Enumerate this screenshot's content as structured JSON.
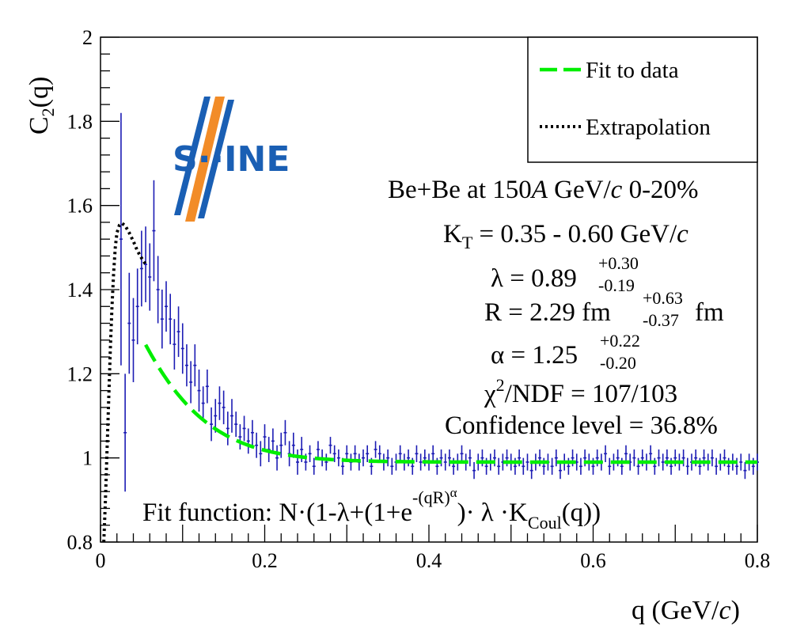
{
  "chart_data": {
    "type": "scatter",
    "title": "",
    "xlabel": "q (GeV/c)",
    "xlabel_parts": [
      "q (GeV/",
      "c",
      ")"
    ],
    "ylabel": "C2(q)",
    "ylabel_parts": [
      "C",
      "2",
      "(q)"
    ],
    "xlim": [
      0,
      0.8
    ],
    "ylim": [
      0.8,
      2.0
    ],
    "xticks": [
      {
        "v": 0,
        "label": "0"
      },
      {
        "v": 0.2,
        "label": "0.2"
      },
      {
        "v": 0.4,
        "label": "0.4"
      },
      {
        "v": 0.6,
        "label": "0.6"
      },
      {
        "v": 0.8,
        "label": "0.8"
      }
    ],
    "yticks": [
      {
        "v": 0.8,
        "label": "0.8"
      },
      {
        "v": 1.0,
        "label": "1"
      },
      {
        "v": 1.2,
        "label": "1.2"
      },
      {
        "v": 1.4,
        "label": "1.4"
      },
      {
        "v": 1.6,
        "label": "1.6"
      },
      {
        "v": 1.8,
        "label": "1.8"
      },
      {
        "v": 2.0,
        "label": "2"
      }
    ],
    "data_series": {
      "name": "Data",
      "color": "#1c1cb4",
      "points": [
        [
          0.025,
          1.52,
          0.3
        ],
        [
          0.03,
          1.06,
          0.14
        ],
        [
          0.035,
          1.32,
          0.12
        ],
        [
          0.04,
          1.28,
          0.1
        ],
        [
          0.045,
          1.36,
          0.09
        ],
        [
          0.05,
          1.45,
          0.09
        ],
        [
          0.055,
          1.46,
          0.09
        ],
        [
          0.06,
          1.43,
          0.08
        ],
        [
          0.065,
          1.54,
          0.12
        ],
        [
          0.07,
          1.4,
          0.08
        ],
        [
          0.075,
          1.33,
          0.07
        ],
        [
          0.08,
          1.36,
          0.06
        ],
        [
          0.085,
          1.33,
          0.06
        ],
        [
          0.09,
          1.27,
          0.06
        ],
        [
          0.095,
          1.3,
          0.06
        ],
        [
          0.1,
          1.26,
          0.06
        ],
        [
          0.105,
          1.22,
          0.05
        ],
        [
          0.11,
          1.18,
          0.05
        ],
        [
          0.115,
          1.22,
          0.05
        ],
        [
          0.12,
          1.16,
          0.05
        ],
        [
          0.125,
          1.13,
          0.04
        ],
        [
          0.13,
          1.17,
          0.04
        ],
        [
          0.135,
          1.08,
          0.04
        ],
        [
          0.14,
          1.1,
          0.04
        ],
        [
          0.145,
          1.13,
          0.04
        ],
        [
          0.15,
          1.12,
          0.04
        ],
        [
          0.155,
          1.07,
          0.04
        ],
        [
          0.16,
          1.1,
          0.04
        ],
        [
          0.165,
          1.08,
          0.03
        ],
        [
          0.17,
          1.05,
          0.03
        ],
        [
          0.175,
          1.07,
          0.03
        ],
        [
          0.18,
          1.04,
          0.03
        ],
        [
          0.185,
          1.06,
          0.03
        ],
        [
          0.19,
          1.03,
          0.03
        ],
        [
          0.195,
          1.01,
          0.03
        ],
        [
          0.2,
          1.05,
          0.03
        ],
        [
          0.205,
          1.02,
          0.03
        ],
        [
          0.21,
          1.04,
          0.03
        ],
        [
          0.215,
          1.0,
          0.03
        ],
        [
          0.22,
          1.03,
          0.03
        ],
        [
          0.225,
          1.06,
          0.03
        ],
        [
          0.23,
          1.01,
          0.03
        ],
        [
          0.235,
          1.03,
          0.03
        ],
        [
          0.24,
          0.99,
          0.03
        ],
        [
          0.245,
          1.02,
          0.03
        ],
        [
          0.25,
          0.99,
          0.02
        ],
        [
          0.255,
          1.01,
          0.02
        ],
        [
          0.26,
          0.98,
          0.02
        ],
        [
          0.265,
          1.02,
          0.02
        ],
        [
          0.27,
          1.0,
          0.02
        ],
        [
          0.275,
          0.99,
          0.02
        ],
        [
          0.28,
          1.03,
          0.02
        ],
        [
          0.285,
          1.01,
          0.02
        ],
        [
          0.29,
          1.0,
          0.02
        ],
        [
          0.295,
          0.98,
          0.02
        ],
        [
          0.3,
          1.01,
          0.02
        ],
        [
          0.305,
          0.99,
          0.02
        ],
        [
          0.31,
          1.01,
          0.02
        ],
        [
          0.315,
          0.99,
          0.02
        ],
        [
          0.32,
          1.0,
          0.02
        ],
        [
          0.325,
          1.01,
          0.02
        ],
        [
          0.33,
          0.98,
          0.02
        ],
        [
          0.335,
          1.02,
          0.02
        ],
        [
          0.34,
          1.01,
          0.02
        ],
        [
          0.345,
          0.99,
          0.02
        ],
        [
          0.35,
          1.0,
          0.02
        ],
        [
          0.355,
          0.98,
          0.02
        ],
        [
          0.36,
          0.99,
          0.02
        ],
        [
          0.365,
          1.01,
          0.02
        ],
        [
          0.37,
          0.99,
          0.02
        ],
        [
          0.375,
          1.0,
          0.02
        ],
        [
          0.38,
          0.98,
          0.02
        ],
        [
          0.385,
          1.01,
          0.02
        ],
        [
          0.39,
          0.99,
          0.02
        ],
        [
          0.395,
          1.0,
          0.02
        ],
        [
          0.4,
          0.99,
          0.02
        ],
        [
          0.405,
          1.01,
          0.02
        ],
        [
          0.41,
          0.98,
          0.02
        ],
        [
          0.415,
          1.0,
          0.02
        ],
        [
          0.42,
          0.99,
          0.02
        ],
        [
          0.425,
          1.0,
          0.02
        ],
        [
          0.43,
          0.98,
          0.02
        ],
        [
          0.435,
          0.99,
          0.02
        ],
        [
          0.44,
          1.01,
          0.02
        ],
        [
          0.445,
          0.99,
          0.02
        ],
        [
          0.45,
          1.0,
          0.02
        ],
        [
          0.455,
          0.97,
          0.02
        ],
        [
          0.46,
          0.99,
          0.02
        ],
        [
          0.465,
          1.0,
          0.02
        ],
        [
          0.47,
          0.98,
          0.02
        ],
        [
          0.475,
          0.99,
          0.02
        ],
        [
          0.48,
          1.0,
          0.02
        ],
        [
          0.485,
          0.98,
          0.02
        ],
        [
          0.49,
          0.99,
          0.02
        ],
        [
          0.495,
          1.0,
          0.02
        ],
        [
          0.5,
          0.99,
          0.02
        ],
        [
          0.505,
          0.98,
          0.02
        ],
        [
          0.51,
          1.0,
          0.02
        ],
        [
          0.515,
          0.98,
          0.02
        ],
        [
          0.52,
          0.99,
          0.02
        ],
        [
          0.525,
          0.97,
          0.02
        ],
        [
          0.53,
          0.99,
          0.02
        ],
        [
          0.535,
          1.0,
          0.02
        ],
        [
          0.54,
          0.98,
          0.02
        ],
        [
          0.545,
          0.99,
          0.02
        ],
        [
          0.55,
          0.98,
          0.02
        ],
        [
          0.555,
          1.0,
          0.02
        ],
        [
          0.56,
          0.97,
          0.02
        ],
        [
          0.565,
          0.99,
          0.02
        ],
        [
          0.57,
          0.98,
          0.02
        ],
        [
          0.575,
          1.0,
          0.02
        ],
        [
          0.58,
          0.99,
          0.02
        ],
        [
          0.585,
          0.98,
          0.02
        ],
        [
          0.59,
          1.0,
          0.02
        ],
        [
          0.595,
          0.99,
          0.02
        ],
        [
          0.6,
          0.98,
          0.02
        ],
        [
          0.605,
          1.0,
          0.02
        ],
        [
          0.61,
          0.99,
          0.02
        ],
        [
          0.615,
          1.01,
          0.02
        ],
        [
          0.62,
          0.98,
          0.02
        ],
        [
          0.625,
          0.99,
          0.02
        ],
        [
          0.63,
          1.0,
          0.02
        ],
        [
          0.635,
          0.98,
          0.02
        ],
        [
          0.64,
          1.01,
          0.02
        ],
        [
          0.645,
          0.99,
          0.02
        ],
        [
          0.65,
          1.0,
          0.02
        ],
        [
          0.655,
          0.98,
          0.02
        ],
        [
          0.66,
          1.0,
          0.02
        ],
        [
          0.665,
          0.99,
          0.02
        ],
        [
          0.67,
          1.01,
          0.02
        ],
        [
          0.675,
          0.98,
          0.02
        ],
        [
          0.68,
          1.0,
          0.02
        ],
        [
          0.685,
          0.99,
          0.02
        ],
        [
          0.69,
          1.0,
          0.02
        ],
        [
          0.695,
          0.98,
          0.02
        ],
        [
          0.7,
          1.0,
          0.02
        ],
        [
          0.705,
          0.99,
          0.02
        ],
        [
          0.71,
          1.0,
          0.02
        ],
        [
          0.715,
          0.98,
          0.02
        ],
        [
          0.72,
          0.99,
          0.02
        ],
        [
          0.725,
          1.0,
          0.02
        ],
        [
          0.73,
          0.98,
          0.02
        ],
        [
          0.735,
          1.0,
          0.02
        ],
        [
          0.74,
          0.99,
          0.02
        ],
        [
          0.745,
          1.0,
          0.02
        ],
        [
          0.75,
          0.98,
          0.02
        ],
        [
          0.755,
          0.99,
          0.02
        ],
        [
          0.76,
          1.0,
          0.02
        ],
        [
          0.765,
          0.98,
          0.02
        ],
        [
          0.77,
          0.99,
          0.02
        ],
        [
          0.775,
          0.98,
          0.02
        ],
        [
          0.78,
          0.99,
          0.02
        ],
        [
          0.785,
          0.97,
          0.02
        ],
        [
          0.79,
          0.99,
          0.02
        ],
        [
          0.795,
          0.98,
          0.02
        ],
        [
          0.8,
          0.99,
          0.02
        ]
      ]
    },
    "fit": {
      "name": "Fit to data",
      "color": "#00ee00",
      "range": [
        0.055,
        0.8
      ],
      "N": 0.99,
      "lambda": 0.89,
      "R_fm": 2.29,
      "alpha": 1.25
    },
    "extrapolation": {
      "name": "Extrapolation",
      "color": "#000000",
      "points": [
        [
          0.004,
          0.8
        ],
        [
          0.006,
          0.9
        ],
        [
          0.008,
          1.02
        ],
        [
          0.01,
          1.14
        ],
        [
          0.012,
          1.26
        ],
        [
          0.014,
          1.36
        ],
        [
          0.016,
          1.44
        ],
        [
          0.018,
          1.5
        ],
        [
          0.02,
          1.535
        ],
        [
          0.023,
          1.553
        ],
        [
          0.026,
          1.558
        ],
        [
          0.03,
          1.552
        ],
        [
          0.035,
          1.535
        ],
        [
          0.04,
          1.515
        ],
        [
          0.045,
          1.492
        ],
        [
          0.05,
          1.475
        ],
        [
          0.055,
          1.46
        ]
      ]
    }
  },
  "legend": {
    "fit_label": "Fit to data",
    "extrap_label": "Extrapolation"
  },
  "annotations": {
    "system": {
      "a": "Be+Be at 150",
      "b": "A",
      "c": " GeV/",
      "d": "c",
      "e": " 0-20%"
    },
    "kt": {
      "k": "K",
      "sub": "T",
      "rest": " = 0.35 - 0.60 GeV/",
      "c": "c"
    },
    "lambda": {
      "main": "λ = 0.89",
      "up": "+0.30",
      "down": "-0.19"
    },
    "radius": {
      "main": "R = 2.29 fm",
      "up": "+0.63",
      "down": "-0.37",
      "unit": "fm"
    },
    "alpha": {
      "main": "α = 1.25",
      "up": "+0.22",
      "down": "-0.20"
    },
    "chi2": {
      "chi": "χ",
      "sup": "2",
      "rest": "/NDF = 107/103"
    },
    "confidence": "Confidence level = 36.8%",
    "fit_function": {
      "a": "Fit function: N·(1-λ+(1+e",
      "exp": "-(qR)",
      "expsup": "α",
      "b": ")· λ ·K",
      "sub": "Coul",
      "c": "(q))"
    }
  },
  "logo": {
    "text": "S··INE"
  }
}
